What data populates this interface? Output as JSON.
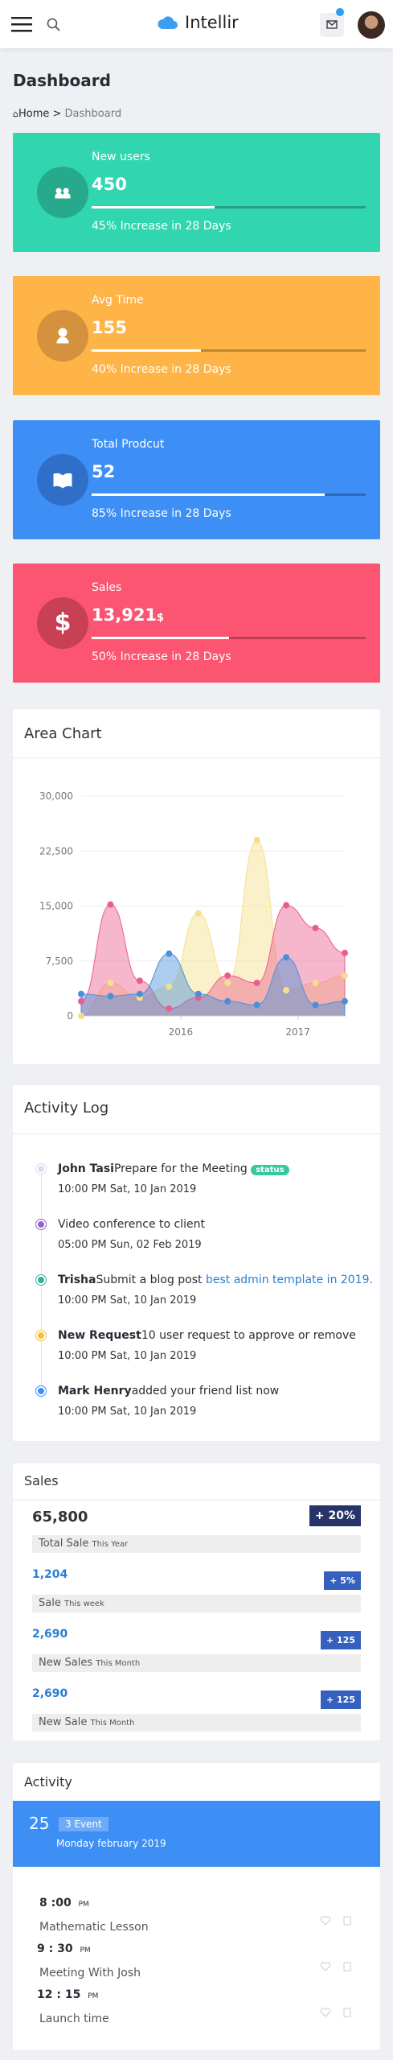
{
  "header": {
    "logo": "Intellir"
  },
  "page": {
    "title": "Dashboard",
    "breadcrumb": [
      "Home",
      "Dashboard"
    ]
  },
  "cards": [
    {
      "label": "New users",
      "value": "450",
      "footer": "45% Increase in 28 Days"
    },
    {
      "label": "Avg Time",
      "value": "155",
      "footer": "40% Increase in 28 Days"
    },
    {
      "label": "Total Prodcut",
      "value": "52",
      "footer": "85% Increase in 28 Days"
    },
    {
      "label": "Sales",
      "value": "13,921",
      "unit": "$",
      "footer": "50% Increase in 28 Days"
    }
  ],
  "chart_data": {
    "type": "area",
    "title": "Area Chart",
    "x": [
      2015.15,
      2015.4,
      2015.65,
      2015.9,
      2016.15,
      2016.4,
      2016.65,
      2016.9,
      2017.15,
      2017.4
    ],
    "xlim": [
      2015.15,
      2017.4
    ],
    "xticks": [
      2016,
      2017
    ],
    "ylim": [
      0,
      30000
    ],
    "yticks": [
      0,
      {
        "value": 7500,
        "label": "7,500"
      },
      {
        "value": 15000,
        "label": "15,000"
      },
      {
        "value": 22500,
        "label": "22,500"
      },
      {
        "value": 30000,
        "label": "30,000"
      }
    ],
    "grid": true,
    "series": [
      {
        "color": "#f5e08a",
        "values": [
          0,
          4500,
          2500,
          4000,
          14000,
          4500,
          24000,
          3500,
          4500,
          5500
        ]
      },
      {
        "color": "#ec5d8c",
        "values": [
          2000,
          15200,
          4800,
          1000,
          2500,
          5500,
          4500,
          15100,
          12000,
          8600
        ]
      },
      {
        "color": "#4a90d9",
        "values": [
          3000,
          2700,
          3000,
          8500,
          3000,
          2000,
          1500,
          8000,
          1500,
          2000
        ]
      }
    ]
  },
  "activity_log": {
    "title": "Activity Log",
    "items": [
      {
        "name": "John Tasi",
        "text": "Prepare for the Meeting",
        "badge": "status",
        "time": "10:00 PM Sat, 10 Jan 2019"
      },
      {
        "text": "Video conference to client",
        "time": "05:00 PM Sun, 02 Feb 2019"
      },
      {
        "name": "Trisha",
        "text": "Submit a blog post ",
        "link": "best admin template in 2019.",
        "time": "10:00 PM Sat, 10 Jan 2019"
      },
      {
        "name": "New Request",
        "text": "10 user request to approve or remove",
        "time": "10:00 PM Sat, 10 Jan 2019"
      },
      {
        "name": "Mark Henry",
        "text": "added your friend list now",
        "time": "10:00 PM Sat, 10 Jan 2019"
      }
    ]
  },
  "sales": {
    "title": "Sales",
    "rows": [
      {
        "value": "65,800",
        "badge": "+ 20%",
        "label": "Total Sale",
        "period": "This Year"
      },
      {
        "value": "1,204",
        "badge": "+ 5%",
        "label": "Sale",
        "period": "This week"
      },
      {
        "value": "2,690",
        "badge": "+ 125",
        "label": "New Sales",
        "period": "This Month"
      },
      {
        "value": "2,690",
        "badge": "+ 125",
        "label": "New Sale",
        "period": "This Month"
      }
    ]
  },
  "activity": {
    "title": "Activity",
    "day": "25",
    "events": "3 Event",
    "date": "Monday february 2019",
    "items": [
      {
        "time": "8 :00",
        "period": "PM",
        "title": "Mathematic Lesson"
      },
      {
        "time": "9 : 30",
        "period": "PM",
        "title": "Meeting With Josh"
      },
      {
        "time": "12 : 15",
        "period": "PM",
        "title": "Launch time"
      }
    ]
  }
}
